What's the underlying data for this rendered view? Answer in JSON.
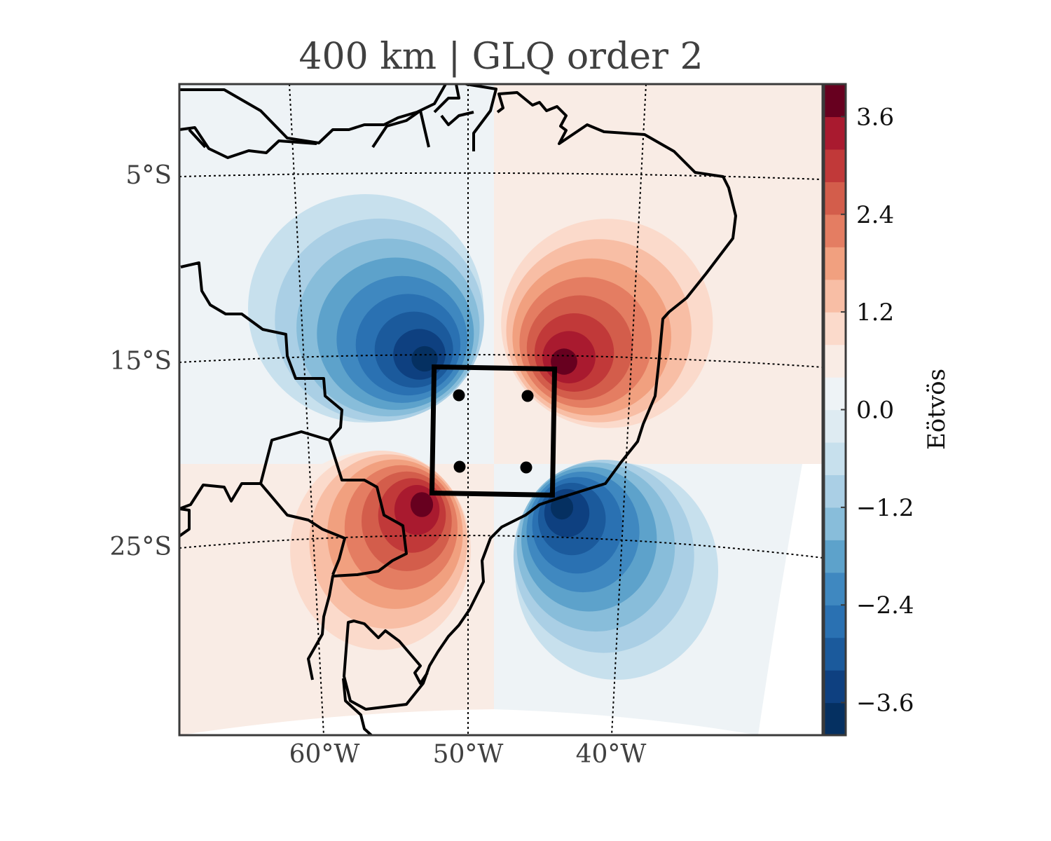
{
  "chart_data": {
    "type": "heatmap",
    "title": "400 km | GLQ order 2",
    "projection": "map",
    "colorbar": {
      "label": "Eötvös",
      "ticks": [
        3.6,
        2.4,
        1.2,
        0.0,
        -1.2,
        -2.4,
        -3.6
      ],
      "tick_labels": [
        "3.6",
        "2.4",
        "1.2",
        "0.0",
        "−1.2",
        "−2.4",
        "−3.6"
      ],
      "range": [
        -4.0,
        4.0
      ],
      "levels": 20,
      "colors": [
        "#053061",
        "#0e4080",
        "#1b5a9c",
        "#2a71b2",
        "#3f88c0",
        "#5da2cb",
        "#88bdda",
        "#aacfe5",
        "#c7e0ed",
        "#deebf2",
        "#eef3f6",
        "#f9ece5",
        "#fbdacb",
        "#f8bea5",
        "#f1a07f",
        "#e47d62",
        "#d35d4b",
        "#c13939",
        "#a91a2f",
        "#67001f"
      ]
    },
    "lat_labels": [
      "5°S",
      "15°S",
      "25°S"
    ],
    "lon_labels": [
      "60°W",
      "50°W",
      "40°W"
    ],
    "anomalies": [
      {
        "sign": "negative",
        "peak": -3.9,
        "quadrant": "upper-left"
      },
      {
        "sign": "positive",
        "peak": 3.9,
        "quadrant": "upper-right"
      },
      {
        "sign": "positive",
        "peak": 3.9,
        "quadrant": "lower-left"
      },
      {
        "sign": "negative",
        "peak": -3.9,
        "quadrant": "lower-right"
      }
    ],
    "point_masses": 4,
    "grid": true
  }
}
